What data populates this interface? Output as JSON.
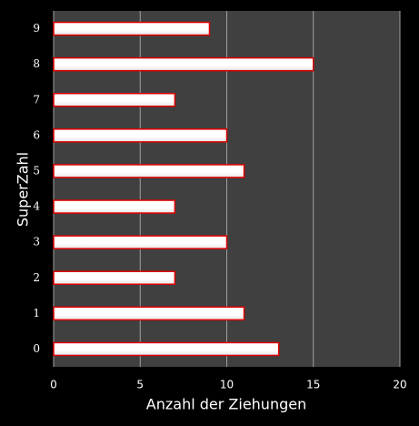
{
  "chart_data": {
    "type": "bar",
    "orientation": "horizontal",
    "x_label": "Anzahl der Ziehungen",
    "y_label": "SuperZahl",
    "categories": [
      "0",
      "1",
      "2",
      "3",
      "4",
      "5",
      "6",
      "7",
      "8",
      "9"
    ],
    "values": [
      13,
      11,
      7,
      10,
      7,
      11,
      10,
      7,
      15,
      9
    ],
    "color": "#ffffff",
    "edge_color": "#e00000",
    "xlim": [
      0,
      20
    ],
    "xticks": [
      0,
      5,
      10,
      15,
      20
    ],
    "grid": true
  }
}
